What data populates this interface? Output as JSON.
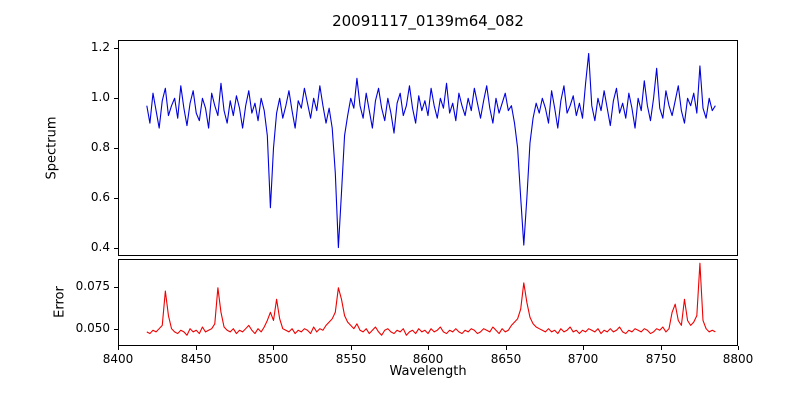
{
  "chart_data": {
    "type": "line",
    "title": "20091117_0139m64_082",
    "xlabel": "Wavelength",
    "xlim": [
      8400,
      8800
    ],
    "xticks": [
      8400,
      8450,
      8500,
      8550,
      8600,
      8650,
      8700,
      8750,
      8800
    ],
    "xtick_labels": [
      "8400",
      "8450",
      "8500",
      "8550",
      "8600",
      "8650",
      "8700",
      "8750",
      "8800"
    ],
    "x_start": 8418,
    "x_step": 2,
    "n_points": 185,
    "grid": false,
    "legend": "none",
    "panels": [
      {
        "name": "spectrum",
        "ylabel": "Spectrum",
        "ylim": [
          0.37,
          1.23
        ],
        "yticks": [
          0.4,
          0.6,
          0.8,
          1.0,
          1.2
        ],
        "ytick_labels": [
          "0.4",
          "0.6",
          "0.8",
          "1.0",
          "1.2"
        ],
        "color": "#0000dd",
        "absorption_line_centers": [
          8498,
          8542,
          8662
        ],
        "values": [
          0.97,
          0.9,
          1.02,
          0.95,
          0.88,
          0.99,
          1.04,
          0.93,
          0.97,
          1.0,
          0.92,
          1.05,
          0.96,
          0.89,
          0.98,
          1.03,
          0.94,
          0.91,
          1.0,
          0.96,
          0.88,
          1.02,
          0.97,
          0.93,
          1.06,
          0.95,
          0.9,
          0.99,
          0.93,
          1.01,
          0.96,
          0.88,
          0.97,
          1.03,
          0.94,
          0.98,
          0.91,
          1.0,
          0.95,
          0.85,
          0.56,
          0.8,
          0.94,
          1.0,
          0.92,
          0.97,
          1.03,
          0.95,
          0.88,
          0.99,
          0.96,
          1.04,
          0.98,
          0.92,
          1.0,
          0.95,
          1.05,
          0.97,
          0.9,
          0.96,
          0.88,
          0.7,
          0.4,
          0.62,
          0.85,
          0.93,
          1.0,
          0.96,
          1.08,
          0.97,
          0.92,
          1.02,
          0.95,
          0.88,
          0.99,
          1.04,
          0.96,
          0.91,
          1.0,
          0.94,
          0.86,
          0.98,
          1.02,
          0.93,
          0.97,
          1.05,
          0.96,
          0.9,
          1.01,
          0.95,
          0.99,
          0.93,
          1.04,
          0.97,
          0.92,
          1.0,
          0.96,
          1.06,
          0.94,
          0.98,
          0.91,
          1.02,
          0.97,
          0.93,
          1.0,
          0.95,
          1.04,
          0.98,
          0.92,
          0.99,
          1.05,
          0.96,
          0.9,
          1.0,
          0.94,
          0.98,
          1.02,
          0.95,
          0.97,
          0.9,
          0.8,
          0.6,
          0.41,
          0.6,
          0.82,
          0.92,
          0.98,
          0.94,
          1.0,
          0.96,
          0.9,
          1.03,
          0.96,
          0.88,
          0.99,
          1.05,
          0.94,
          0.97,
          1.01,
          0.93,
          0.98,
          0.92,
          1.06,
          1.18,
          0.97,
          0.91,
          1.0,
          0.95,
          1.03,
          0.96,
          0.89,
          0.99,
          1.04,
          0.94,
          0.98,
          0.92,
          1.02,
          0.96,
          0.88,
          1.0,
          0.95,
          1.07,
          0.97,
          0.91,
          1.0,
          1.12,
          0.96,
          0.92,
          1.03,
          0.97,
          0.93,
          0.99,
          1.05,
          0.95,
          0.9,
          1.0,
          0.97,
          1.02,
          0.94,
          1.13,
          0.96,
          0.92,
          1.0,
          0.95,
          0.97
        ]
      },
      {
        "name": "error",
        "ylabel": "Error",
        "ylim": [
          0.04,
          0.092
        ],
        "yticks": [
          0.05,
          0.075
        ],
        "ytick_labels": [
          "0.050",
          "0.075"
        ],
        "color": "#ee0000",
        "spike_centers": [
          8430,
          8464,
          8502,
          8542,
          8662,
          8760,
          8776
        ],
        "values": [
          0.048,
          0.047,
          0.049,
          0.048,
          0.05,
          0.052,
          0.073,
          0.058,
          0.05,
          0.048,
          0.047,
          0.049,
          0.048,
          0.046,
          0.05,
          0.048,
          0.049,
          0.047,
          0.051,
          0.048,
          0.049,
          0.05,
          0.053,
          0.075,
          0.06,
          0.051,
          0.049,
          0.048,
          0.05,
          0.047,
          0.049,
          0.048,
          0.05,
          0.052,
          0.049,
          0.047,
          0.05,
          0.048,
          0.051,
          0.055,
          0.06,
          0.055,
          0.068,
          0.056,
          0.05,
          0.049,
          0.048,
          0.05,
          0.047,
          0.049,
          0.048,
          0.05,
          0.049,
          0.047,
          0.051,
          0.048,
          0.05,
          0.049,
          0.052,
          0.054,
          0.056,
          0.06,
          0.075,
          0.068,
          0.058,
          0.054,
          0.052,
          0.05,
          0.053,
          0.049,
          0.048,
          0.05,
          0.047,
          0.049,
          0.051,
          0.048,
          0.046,
          0.049,
          0.05,
          0.048,
          0.047,
          0.049,
          0.048,
          0.05,
          0.046,
          0.048,
          0.049,
          0.047,
          0.05,
          0.048,
          0.049,
          0.047,
          0.05,
          0.048,
          0.049,
          0.051,
          0.048,
          0.047,
          0.049,
          0.048,
          0.05,
          0.048,
          0.047,
          0.049,
          0.048,
          0.05,
          0.049,
          0.047,
          0.048,
          0.05,
          0.049,
          0.048,
          0.051,
          0.049,
          0.047,
          0.05,
          0.048,
          0.049,
          0.052,
          0.054,
          0.056,
          0.062,
          0.078,
          0.066,
          0.057,
          0.053,
          0.051,
          0.05,
          0.049,
          0.048,
          0.05,
          0.048,
          0.049,
          0.047,
          0.05,
          0.048,
          0.049,
          0.051,
          0.048,
          0.049,
          0.047,
          0.049,
          0.048,
          0.05,
          0.049,
          0.048,
          0.05,
          0.047,
          0.049,
          0.048,
          0.05,
          0.048,
          0.049,
          0.051,
          0.048,
          0.047,
          0.049,
          0.048,
          0.05,
          0.049,
          0.048,
          0.05,
          0.049,
          0.047,
          0.048,
          0.05,
          0.049,
          0.051,
          0.048,
          0.05,
          0.06,
          0.065,
          0.055,
          0.052,
          0.068,
          0.055,
          0.052,
          0.054,
          0.058,
          0.09,
          0.055,
          0.05,
          0.048,
          0.049,
          0.048
        ]
      }
    ]
  }
}
